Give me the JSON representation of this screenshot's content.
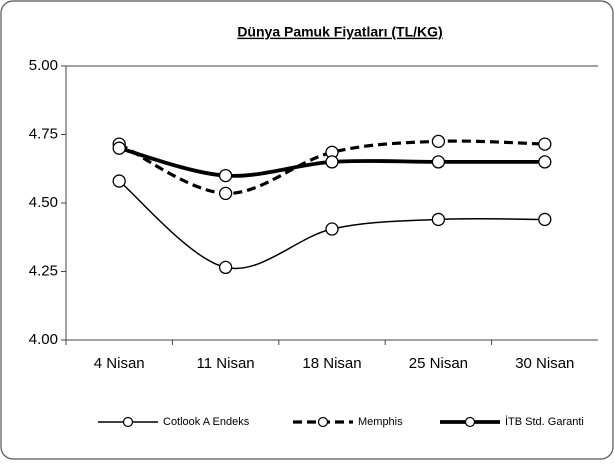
{
  "chart_data": {
    "type": "line",
    "title": "Dünya Pamuk Fiyatları (TL/KG)",
    "categories": [
      "4 Nisan",
      "11 Nisan",
      "18 Nisan",
      "25 Nisan",
      "30 Nisan"
    ],
    "series": [
      {
        "name": "Cotlook A Endeks",
        "color": "#000000",
        "line_style": "thin",
        "values": [
          4.58,
          4.265,
          4.405,
          4.44,
          4.44
        ]
      },
      {
        "name": "Memphis",
        "color": "#000000",
        "line_style": "dashed",
        "values": [
          4.715,
          4.535,
          4.685,
          4.725,
          4.715
        ]
      },
      {
        "name": "İTB Std. Garanti",
        "color": "#000000",
        "line_style": "thick",
        "values": [
          4.7,
          4.6,
          4.65,
          4.65,
          4.65
        ]
      }
    ],
    "ylim": [
      4.0,
      5.0
    ],
    "yticks": [
      {
        "value": 4.0,
        "label": "4.00"
      },
      {
        "value": 4.25,
        "label": "4.25"
      },
      {
        "value": 4.5,
        "label": "4.50"
      },
      {
        "value": 4.75,
        "label": "4.75"
      },
      {
        "value": 5.0,
        "label": "5.00"
      }
    ],
    "legend": "bottom",
    "smooth": true
  }
}
